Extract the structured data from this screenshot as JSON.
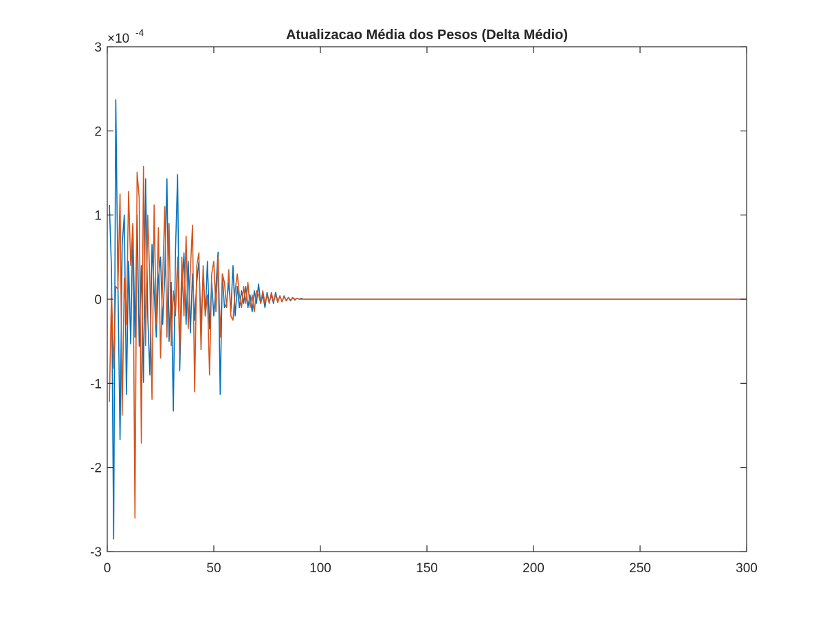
{
  "chart_data": {
    "type": "line",
    "title": "Atualizacao Média dos Pesos (Delta Médio)",
    "xlabel": "",
    "ylabel": "",
    "xlim": [
      0,
      300
    ],
    "ylim": [
      -3,
      3
    ],
    "y_exponent_label": "×10",
    "y_exponent_power": "-4",
    "x_ticks": [
      0,
      50,
      100,
      150,
      200,
      250,
      300
    ],
    "x_tick_labels": [
      "0",
      "50",
      "100",
      "150",
      "200",
      "250",
      "300"
    ],
    "y_ticks": [
      -3,
      -2,
      -1,
      0,
      1,
      2,
      3
    ],
    "y_tick_labels": [
      "-3",
      "-2",
      "-1",
      "0",
      "1",
      "2",
      "3"
    ],
    "grid": false,
    "legend": "none",
    "series": [
      {
        "color": "#0072BD",
        "x": [
          1,
          2,
          3,
          4,
          5,
          6,
          7,
          8,
          9,
          10,
          11,
          12,
          13,
          14,
          15,
          16,
          17,
          18,
          19,
          20,
          21,
          22,
          23,
          24,
          25,
          26,
          27,
          28,
          29,
          30,
          31,
          32,
          33,
          34,
          35,
          36,
          37,
          38,
          39,
          40,
          41,
          42,
          43,
          44,
          45,
          46,
          47,
          48,
          49,
          50,
          51,
          52,
          53,
          54,
          55,
          56,
          57,
          58,
          59,
          60,
          61,
          62,
          63,
          64,
          65,
          66,
          67,
          68,
          69,
          70,
          71,
          72,
          73,
          74,
          75,
          76,
          77,
          78,
          79,
          80,
          81,
          82,
          83,
          84,
          85,
          86,
          87,
          88,
          89,
          90,
          91,
          92,
          93,
          94,
          95,
          96,
          97,
          98,
          99,
          100,
          300
        ],
        "values": [
          1.12,
          0.35,
          -2.85,
          2.37,
          0.2,
          -1.67,
          0.65,
          1.0,
          -1.13,
          0.45,
          -0.53,
          0.9,
          -0.45,
          1.0,
          -0.56,
          0.4,
          -0.99,
          1.43,
          -0.2,
          -0.9,
          0.65,
          0.1,
          -0.45,
          0.25,
          0.5,
          -0.3,
          0.3,
          1.43,
          -0.5,
          0.2,
          -1.33,
          0.55,
          1.48,
          -0.85,
          0.1,
          0.55,
          -0.3,
          0.45,
          -0.4,
          0.3,
          -0.25,
          0.2,
          0.45,
          -0.3,
          0.3,
          -0.2,
          0.45,
          -0.35,
          0.2,
          -0.2,
          0.15,
          0.56,
          -1.13,
          0.3,
          -0.1,
          -0.05,
          0.2,
          -0.15,
          0.4,
          -0.2,
          0.15,
          -0.1,
          0.1,
          -0.05,
          0.15,
          -0.1,
          0.05,
          -0.15,
          0.1,
          -0.05,
          0.18,
          -0.05,
          0.05,
          -0.1,
          0.08,
          -0.04,
          0.05,
          -0.05,
          0.08,
          -0.03,
          0.04,
          -0.03,
          0.04,
          -0.02,
          0.02,
          -0.02,
          0.02,
          -0.01,
          0.01,
          0,
          0.01,
          0,
          0,
          0,
          0,
          0,
          0,
          0,
          0,
          0,
          0
        ]
      },
      {
        "color": "#D95319",
        "x": [
          1,
          2,
          3,
          4,
          5,
          6,
          7,
          8,
          9,
          10,
          11,
          12,
          13,
          14,
          15,
          16,
          17,
          18,
          19,
          20,
          21,
          22,
          23,
          24,
          25,
          26,
          27,
          28,
          29,
          30,
          31,
          32,
          33,
          34,
          35,
          36,
          37,
          38,
          39,
          40,
          41,
          42,
          43,
          44,
          45,
          46,
          47,
          48,
          49,
          50,
          51,
          52,
          53,
          54,
          55,
          56,
          57,
          58,
          59,
          60,
          61,
          62,
          63,
          64,
          65,
          66,
          67,
          68,
          69,
          70,
          71,
          72,
          73,
          74,
          75,
          76,
          77,
          78,
          79,
          80,
          81,
          82,
          83,
          84,
          85,
          86,
          87,
          88,
          89,
          90,
          91,
          92,
          93,
          94,
          95,
          96,
          97,
          98,
          99,
          100,
          300
        ],
        "values": [
          -1.22,
          0.1,
          -0.82,
          0.15,
          0.12,
          1.25,
          -1.38,
          0.25,
          -0.3,
          1.28,
          0.4,
          0.9,
          -2.6,
          1.51,
          1.2,
          -1.71,
          1.58,
          -0.55,
          1.0,
          0.2,
          -1.19,
          1.12,
          -0.3,
          0.85,
          -0.7,
          0.25,
          1.1,
          -0.45,
          0.9,
          -0.55,
          0.1,
          -0.2,
          0.5,
          -0.7,
          0.5,
          -0.2,
          0.75,
          -0.35,
          0.35,
          0.88,
          -1.1,
          0.4,
          0.55,
          -0.6,
          0.4,
          -0.2,
          0.05,
          -0.9,
          0.3,
          0.45,
          -0.15,
          0.5,
          -0.45,
          0.3,
          0.2,
          -0.1,
          0.35,
          -0.2,
          -0.25,
          0.1,
          0.3,
          0.05,
          -0.1,
          0.15,
          -0.05,
          0.2,
          -0.1,
          0.05,
          -0.15,
          0.1,
          0.05,
          -0.05,
          0.1,
          -0.05,
          0.05,
          -0.05,
          0.08,
          -0.03,
          0.05,
          -0.04,
          0.04,
          -0.03,
          0.03,
          -0.02,
          0.02,
          -0.01,
          0.01,
          0,
          0.01,
          0,
          0,
          0,
          0,
          0,
          0,
          0,
          0,
          0,
          0,
          0,
          0
        ]
      }
    ]
  }
}
